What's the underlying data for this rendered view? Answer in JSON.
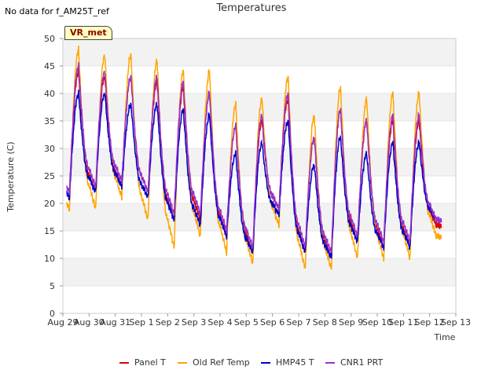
{
  "header": {
    "no_data_text": "No data for f_AM25T_ref",
    "badge": "VR_met"
  },
  "chart_data": {
    "type": "line",
    "title": "Temperatures",
    "xlabel": "Time",
    "ylabel": "Temperature (C)",
    "ylim": [
      0,
      50
    ],
    "yticks": [
      0,
      5,
      10,
      15,
      20,
      25,
      30,
      35,
      40,
      45,
      50
    ],
    "xlim": [
      0,
      15
    ],
    "xtick_labels": [
      "Aug 29",
      "Aug 30",
      "Aug 31",
      "Sep 1",
      "Sep 2",
      "Sep 3",
      "Sep 4",
      "Sep 5",
      "Sep 6",
      "Sep 7",
      "Sep 8",
      "Sep 9",
      "Sep 10",
      "Sep 11",
      "Sep 12",
      "Sep 13"
    ],
    "grid": "horizontal bands",
    "legend_position": "bottom",
    "days": [
      "Aug 29",
      "Aug 30",
      "Aug 31",
      "Sep 1",
      "Sep 2",
      "Sep 3",
      "Sep 4",
      "Sep 5",
      "Sep 6",
      "Sep 7",
      "Sep 8",
      "Sep 9",
      "Sep 10",
      "Sep 11",
      "Sep 12"
    ],
    "series": [
      {
        "name": "Panel T",
        "color": "#dd0000",
        "daily_min": [
          21,
          22,
          23,
          22,
          17,
          17,
          14,
          11,
          19,
          11,
          10,
          13,
          12,
          12,
          16
        ],
        "daily_max": [
          44,
          43,
          43,
          42,
          41,
          40,
          34,
          35,
          39,
          32,
          37,
          35,
          35,
          35,
          16
        ]
      },
      {
        "name": "Old Ref Temp",
        "color": "#ffa500",
        "daily_min": [
          19,
          19,
          21,
          17,
          12,
          14,
          11,
          9,
          16,
          8,
          8,
          10,
          10,
          10,
          14
        ],
        "daily_max": [
          48,
          47,
          47,
          46,
          44,
          44,
          38,
          39,
          43,
          36,
          41,
          39,
          40,
          40,
          14
        ]
      },
      {
        "name": "HMP45 T",
        "color": "#0000cc",
        "daily_min": [
          21,
          22,
          23,
          21,
          17,
          16,
          14,
          11,
          18,
          11,
          10,
          13,
          12,
          12,
          17
        ],
        "daily_max": [
          40,
          40,
          38,
          38,
          37,
          36,
          29,
          31,
          35,
          27,
          32,
          29,
          31,
          31,
          17
        ]
      },
      {
        "name": "CNR1 PRT",
        "color": "#9932cc",
        "daily_min": [
          22,
          23,
          24,
          22,
          18,
          18,
          15,
          12,
          19,
          12,
          11,
          14,
          13,
          13,
          17
        ],
        "daily_max": [
          45,
          44,
          43,
          43,
          42,
          40,
          34,
          36,
          40,
          32,
          37,
          35,
          36,
          36,
          17
        ]
      }
    ]
  }
}
